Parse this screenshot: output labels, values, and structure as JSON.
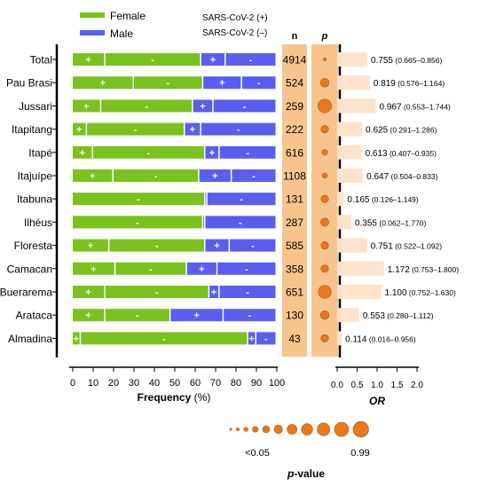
{
  "legend": {
    "female": "Female",
    "male": "Male",
    "pos": "SARS-CoV-2 (+)",
    "neg": "SARS-CoV-2 (–)"
  },
  "colors": {
    "female": "#7ac21e",
    "male": "#5a5ef0",
    "band": "#f8c48e",
    "or_bar": "#fde3cc",
    "dot": "#e8781e"
  },
  "headers": {
    "n": "n",
    "p": "p"
  },
  "chart_data": {
    "type": "bar",
    "categories": [
      "Total",
      "Pau Brasi",
      "Jussari",
      "Itapitang",
      "Itapé",
      "Itajuípe",
      "Itabuna",
      "Ilhéus",
      "Floresta",
      "Camacan",
      "Buerarema",
      "Arataca",
      "Almadina"
    ],
    "series": [
      {
        "name": "Female SARS-CoV-2 (+)",
        "values": [
          16,
          30,
          14,
          7,
          10,
          20,
          0,
          0,
          18,
          21,
          16,
          16,
          4
        ]
      },
      {
        "name": "Female SARS-CoV-2 (–)",
        "values": [
          47,
          34,
          45,
          48,
          55,
          42,
          65,
          64,
          47,
          35,
          51,
          32,
          82
        ]
      },
      {
        "name": "Male SARS-CoV-2 (+)",
        "values": [
          12,
          19,
          10,
          8,
          7,
          16,
          1,
          1,
          12,
          15,
          5,
          26,
          4
        ]
      },
      {
        "name": "Male SARS-CoV-2 (–)",
        "values": [
          25,
          17,
          31,
          37,
          28,
          22,
          34,
          35,
          23,
          29,
          28,
          26,
          10
        ]
      }
    ],
    "n": [
      "4914",
      "524",
      "259",
      "222",
      "616",
      "1108",
      "131",
      "287",
      "585",
      "358",
      "651",
      "130",
      "43"
    ],
    "p_size": [
      0.1,
      0.55,
      0.95,
      0.45,
      0.3,
      0.25,
      0.45,
      0.5,
      0.45,
      0.45,
      0.9,
      0.55,
      0.45
    ],
    "or": [
      0.755,
      0.819,
      0.967,
      0.625,
      0.613,
      0.647,
      0.165,
      0.355,
      0.751,
      1.172,
      1.1,
      0.553,
      0.114
    ],
    "or_label": [
      "0.755",
      "0.819",
      "0.967",
      "0.625",
      "0.613",
      "0.647",
      "0.165",
      "0.355",
      "0.751",
      "1.172",
      "1.100",
      "0.553",
      "0.114"
    ],
    "or_ci": [
      "(0.665–0.856)",
      "(0.576–1.164)",
      "(0.553–1.744)",
      "(0.291–1.286)",
      "(0.407–0.935)",
      "(0.504–0.833)",
      "(0.126–1.149)",
      "(0.062–1.770)",
      "(0.522–1.092)",
      "(0.753–1.800)",
      "(0.752–1.630)",
      "(0.280–1.112)",
      "(0.016–0.956)"
    ],
    "xticks": [
      "0",
      "10",
      "20",
      "30",
      "40",
      "50",
      "60",
      "70",
      "80",
      "90",
      "100"
    ],
    "xlabel": "Frequency",
    "xunit": " (%)",
    "xlim": [
      0,
      100
    ],
    "or_ticks": [
      "0.0",
      "0.5",
      "1.0",
      "1.5",
      "2.0"
    ],
    "or_xlabel": "OR",
    "or_xlim": [
      0,
      2
    ],
    "pvalue": {
      "low_label": "<0.05",
      "high_label": "0.99",
      "title_italic": "p",
      "title_rest": "-value",
      "size_scale": [
        0.05,
        0.12,
        0.2,
        0.3,
        0.4,
        0.5,
        0.6,
        0.7,
        0.8,
        0.9,
        1.0
      ]
    },
    "segment_marks": {
      "pos": "+",
      "neg": "-"
    }
  }
}
